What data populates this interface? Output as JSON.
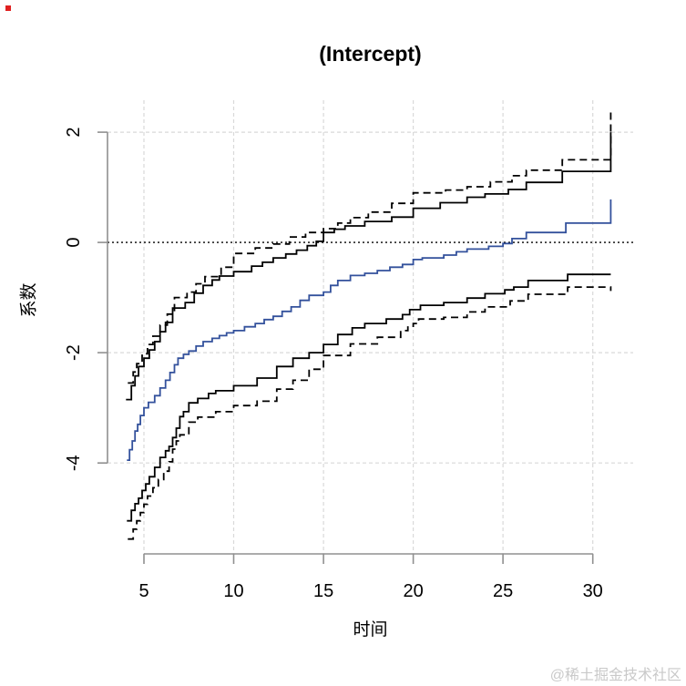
{
  "title": "(Intercept)",
  "watermark": "@稀土掘金技术社区",
  "colors": {
    "estimate_line": "#33519C",
    "band_line": "#000000",
    "zero_line": "#000000",
    "grid": "#d9d9d9",
    "axis": "#909090",
    "tick_text": "#000000",
    "watermark_text": "#c9c9c9",
    "marker_dot": "#e02020"
  },
  "chart_data": {
    "type": "line",
    "title": "(Intercept)",
    "xlabel": "时间",
    "ylabel": "系数",
    "step": "after",
    "grid": true,
    "legend": "none",
    "xlim": [
      2.97,
      32.25
    ],
    "ylim": [
      -5.65,
      2.58
    ],
    "x_ticks": [
      5,
      10,
      15,
      20,
      25,
      30
    ],
    "y_ticks": [
      2,
      0,
      -2,
      -4
    ],
    "y_gridlines": [
      2,
      -2,
      -4
    ],
    "reference_line_y": 0,
    "series": [
      {
        "name": "estimate",
        "style": "solid",
        "color": "#33519C",
        "points": [
          [
            4.05,
            -3.95
          ],
          [
            4.2,
            -3.76
          ],
          [
            4.35,
            -3.6
          ],
          [
            4.5,
            -3.42
          ],
          [
            4.65,
            -3.3
          ],
          [
            4.8,
            -3.14
          ],
          [
            5.0,
            -3.0
          ],
          [
            5.25,
            -2.9
          ],
          [
            5.6,
            -2.78
          ],
          [
            5.9,
            -2.64
          ],
          [
            6.2,
            -2.5
          ],
          [
            6.45,
            -2.36
          ],
          [
            6.7,
            -2.22
          ],
          [
            6.9,
            -2.1
          ],
          [
            7.2,
            -2.03
          ],
          [
            7.5,
            -1.97
          ],
          [
            7.9,
            -1.88
          ],
          [
            8.3,
            -1.8
          ],
          [
            8.8,
            -1.74
          ],
          [
            9.2,
            -1.69
          ],
          [
            9.6,
            -1.64
          ],
          [
            10.0,
            -1.6
          ],
          [
            10.6,
            -1.53
          ],
          [
            11.2,
            -1.47
          ],
          [
            11.7,
            -1.4
          ],
          [
            12.2,
            -1.34
          ],
          [
            12.7,
            -1.25
          ],
          [
            13.2,
            -1.17
          ],
          [
            13.7,
            -1.05
          ],
          [
            14.2,
            -0.96
          ],
          [
            15.0,
            -0.9
          ],
          [
            15.4,
            -0.78
          ],
          [
            15.8,
            -0.69
          ],
          [
            16.5,
            -0.6
          ],
          [
            17.3,
            -0.56
          ],
          [
            18.0,
            -0.51
          ],
          [
            18.7,
            -0.45
          ],
          [
            19.4,
            -0.4
          ],
          [
            20.0,
            -0.31
          ],
          [
            20.5,
            -0.28
          ],
          [
            21.7,
            -0.23
          ],
          [
            22.4,
            -0.17
          ],
          [
            23.0,
            -0.12
          ],
          [
            24.2,
            -0.07
          ],
          [
            25.0,
            -0.02
          ],
          [
            25.5,
            0.07
          ],
          [
            26.3,
            0.18
          ],
          [
            28.5,
            0.35
          ],
          [
            31.0,
            0.78
          ]
        ]
      },
      {
        "name": "upper-inner-ci",
        "style": "solid",
        "color": "#000000",
        "points": [
          [
            4.0,
            -2.85
          ],
          [
            4.3,
            -2.6
          ],
          [
            4.5,
            -2.42
          ],
          [
            4.7,
            -2.25
          ],
          [
            5.0,
            -2.1
          ],
          [
            5.3,
            -1.95
          ],
          [
            5.6,
            -1.8
          ],
          [
            5.9,
            -1.62
          ],
          [
            6.2,
            -1.45
          ],
          [
            6.6,
            -1.19
          ],
          [
            7.3,
            -1.09
          ],
          [
            7.8,
            -0.92
          ],
          [
            8.3,
            -0.78
          ],
          [
            8.8,
            -0.68
          ],
          [
            9.2,
            -0.61
          ],
          [
            10.0,
            -0.53
          ],
          [
            11.0,
            -0.43
          ],
          [
            11.6,
            -0.36
          ],
          [
            12.2,
            -0.28
          ],
          [
            12.9,
            -0.21
          ],
          [
            13.5,
            -0.14
          ],
          [
            14.1,
            -0.06
          ],
          [
            14.6,
            0.02
          ],
          [
            15.0,
            0.18
          ],
          [
            15.6,
            0.24
          ],
          [
            16.2,
            0.3
          ],
          [
            17.3,
            0.38
          ],
          [
            18.8,
            0.46
          ],
          [
            20.0,
            0.62
          ],
          [
            21.5,
            0.72
          ],
          [
            23.0,
            0.82
          ],
          [
            24.0,
            0.88
          ],
          [
            25.3,
            0.96
          ],
          [
            26.3,
            1.09
          ],
          [
            28.3,
            1.29
          ],
          [
            31.0,
            2.0
          ]
        ]
      },
      {
        "name": "upper-outer-ci",
        "style": "dashed",
        "color": "#000000",
        "points": [
          [
            4.1,
            -2.55
          ],
          [
            4.4,
            -2.35
          ],
          [
            4.6,
            -2.2
          ],
          [
            4.9,
            -2.02
          ],
          [
            5.2,
            -1.85
          ],
          [
            5.5,
            -1.7
          ],
          [
            5.9,
            -1.5
          ],
          [
            6.3,
            -1.3
          ],
          [
            6.7,
            -1.0
          ],
          [
            7.4,
            -0.9
          ],
          [
            7.9,
            -0.75
          ],
          [
            8.4,
            -0.62
          ],
          [
            9.3,
            -0.45
          ],
          [
            10.0,
            -0.2
          ],
          [
            11.2,
            -0.1
          ],
          [
            12.2,
            -0.03
          ],
          [
            13.1,
            0.1
          ],
          [
            14.0,
            0.18
          ],
          [
            15.0,
            0.25
          ],
          [
            15.8,
            0.35
          ],
          [
            16.5,
            0.45
          ],
          [
            17.5,
            0.55
          ],
          [
            18.8,
            0.71
          ],
          [
            20.0,
            0.9
          ],
          [
            21.8,
            0.95
          ],
          [
            23.0,
            1.01
          ],
          [
            24.3,
            1.1
          ],
          [
            25.5,
            1.21
          ],
          [
            26.3,
            1.31
          ],
          [
            28.3,
            1.5
          ],
          [
            31.0,
            2.36
          ]
        ]
      },
      {
        "name": "lower-inner-ci",
        "style": "solid",
        "color": "#000000",
        "points": [
          [
            4.05,
            -5.05
          ],
          [
            4.3,
            -4.86
          ],
          [
            4.5,
            -4.74
          ],
          [
            4.7,
            -4.64
          ],
          [
            4.9,
            -4.5
          ],
          [
            5.1,
            -4.38
          ],
          [
            5.3,
            -4.25
          ],
          [
            5.6,
            -4.08
          ],
          [
            5.9,
            -3.9
          ],
          [
            6.2,
            -3.78
          ],
          [
            6.4,
            -3.7
          ],
          [
            6.6,
            -3.54
          ],
          [
            6.8,
            -3.37
          ],
          [
            7.0,
            -3.16
          ],
          [
            7.2,
            -3.07
          ],
          [
            7.5,
            -2.91
          ],
          [
            8.0,
            -2.83
          ],
          [
            8.6,
            -2.74
          ],
          [
            9.0,
            -2.69
          ],
          [
            10.0,
            -2.6
          ],
          [
            11.3,
            -2.46
          ],
          [
            12.4,
            -2.25
          ],
          [
            13.3,
            -2.1
          ],
          [
            14.2,
            -2.0
          ],
          [
            15.0,
            -1.85
          ],
          [
            15.8,
            -1.67
          ],
          [
            16.6,
            -1.55
          ],
          [
            17.3,
            -1.47
          ],
          [
            18.5,
            -1.39
          ],
          [
            19.4,
            -1.31
          ],
          [
            19.8,
            -1.22
          ],
          [
            20.4,
            -1.14
          ],
          [
            21.7,
            -1.09
          ],
          [
            23.0,
            -1.01
          ],
          [
            24.0,
            -0.93
          ],
          [
            25.1,
            -0.86
          ],
          [
            25.6,
            -0.81
          ],
          [
            26.4,
            -0.69
          ],
          [
            28.6,
            -0.58
          ],
          [
            31.0,
            -0.58
          ]
        ]
      },
      {
        "name": "lower-outer-ci",
        "style": "dashed",
        "color": "#000000",
        "points": [
          [
            4.1,
            -5.38
          ],
          [
            4.4,
            -5.2
          ],
          [
            4.6,
            -5.05
          ],
          [
            4.8,
            -4.9
          ],
          [
            5.0,
            -4.75
          ],
          [
            5.2,
            -4.6
          ],
          [
            5.5,
            -4.45
          ],
          [
            5.8,
            -4.3
          ],
          [
            6.1,
            -4.15
          ],
          [
            6.4,
            -3.98
          ],
          [
            6.6,
            -3.75
          ],
          [
            6.8,
            -3.6
          ],
          [
            7.0,
            -3.49
          ],
          [
            7.5,
            -3.26
          ],
          [
            8.0,
            -3.17
          ],
          [
            9.0,
            -3.07
          ],
          [
            10.0,
            -2.96
          ],
          [
            11.3,
            -2.88
          ],
          [
            12.4,
            -2.66
          ],
          [
            13.3,
            -2.5
          ],
          [
            14.2,
            -2.3
          ],
          [
            15.0,
            -2.05
          ],
          [
            16.5,
            -1.84
          ],
          [
            18.0,
            -1.72
          ],
          [
            19.3,
            -1.6
          ],
          [
            19.7,
            -1.52
          ],
          [
            20.0,
            -1.47
          ],
          [
            20.3,
            -1.39
          ],
          [
            21.7,
            -1.36
          ],
          [
            23.0,
            -1.26
          ],
          [
            24.0,
            -1.17
          ],
          [
            25.4,
            -1.06
          ],
          [
            26.4,
            -0.94
          ],
          [
            28.6,
            -0.81
          ],
          [
            31.0,
            -0.88
          ]
        ]
      }
    ]
  }
}
